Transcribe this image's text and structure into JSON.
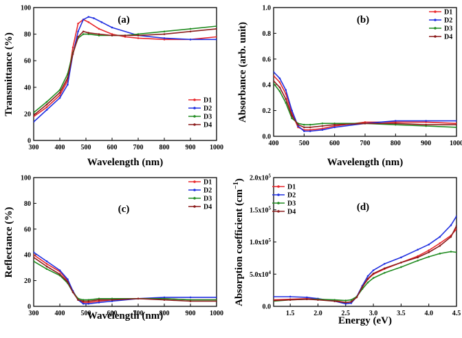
{
  "colors": {
    "D1": "#e8262b",
    "D2": "#1f2ee0",
    "D3": "#1e8a1e",
    "D4": "#8b1a1a"
  },
  "chart_data": [
    {
      "type": "line",
      "panel_label": "(a)",
      "xlabel": "Wavelength (nm)",
      "ylabel": "Transmittance (%)",
      "xlim": [
        300,
        1000
      ],
      "ylim": [
        0,
        100
      ],
      "xticks": [
        "300",
        "400",
        "500",
        "600",
        "700",
        "800",
        "900",
        "1000"
      ],
      "yticks": [
        "0",
        "20",
        "40",
        "60",
        "80",
        "100"
      ],
      "legend_position": "bottom-right",
      "series": [
        {
          "name": "D1",
          "x": [
            300,
            350,
            400,
            430,
            450,
            470,
            490,
            510,
            550,
            600,
            650,
            700,
            800,
            900,
            1000
          ],
          "y": [
            18,
            25,
            34,
            45,
            70,
            88,
            91,
            89,
            84,
            80,
            78,
            77,
            76,
            76,
            78
          ]
        },
        {
          "name": "D2",
          "x": [
            300,
            350,
            400,
            430,
            450,
            470,
            490,
            510,
            530,
            560,
            600,
            700,
            800,
            900,
            1000
          ],
          "y": [
            14,
            23,
            32,
            42,
            65,
            82,
            91,
            93,
            92,
            89,
            85,
            79,
            77,
            76,
            76
          ]
        },
        {
          "name": "D3",
          "x": [
            300,
            350,
            400,
            430,
            450,
            470,
            490,
            510,
            550,
            600,
            650,
            700,
            800,
            900,
            1000
          ],
          "y": [
            21,
            29,
            38,
            50,
            66,
            77,
            80,
            80,
            79,
            79,
            79,
            80,
            82,
            84,
            86
          ]
        },
        {
          "name": "D4",
          "x": [
            300,
            350,
            400,
            430,
            450,
            470,
            490,
            510,
            550,
            600,
            650,
            700,
            800,
            900,
            1000
          ],
          "y": [
            19,
            27,
            36,
            47,
            65,
            78,
            82,
            81,
            80,
            79,
            79,
            79,
            80,
            82,
            84
          ]
        }
      ]
    },
    {
      "type": "line",
      "panel_label": "(b)",
      "xlabel": "Wavelength (nm)",
      "ylabel": "Absorbance (arb. unit)",
      "xlim": [
        400,
        1000
      ],
      "ylim": [
        0,
        1.0
      ],
      "xticks": [
        "400",
        "500",
        "600",
        "700",
        "800",
        "900",
        "1000"
      ],
      "yticks": [
        "0.0",
        "0.2",
        "0.4",
        "0.6",
        "0.8",
        "1.0"
      ],
      "legend_position": "top-right",
      "series": [
        {
          "name": "D1",
          "x": [
            400,
            420,
            440,
            460,
            480,
            500,
            520,
            560,
            600,
            700,
            800,
            900,
            1000
          ],
          "y": [
            0.47,
            0.42,
            0.33,
            0.18,
            0.07,
            0.05,
            0.05,
            0.06,
            0.08,
            0.11,
            0.11,
            0.11,
            0.1
          ]
        },
        {
          "name": "D2",
          "x": [
            400,
            420,
            440,
            460,
            480,
            500,
            520,
            560,
            600,
            700,
            800,
            900,
            1000
          ],
          "y": [
            0.5,
            0.45,
            0.36,
            0.2,
            0.08,
            0.04,
            0.04,
            0.05,
            0.07,
            0.1,
            0.12,
            0.12,
            0.12
          ]
        },
        {
          "name": "D3",
          "x": [
            400,
            420,
            440,
            460,
            480,
            500,
            520,
            560,
            600,
            700,
            800,
            900,
            1000
          ],
          "y": [
            0.41,
            0.35,
            0.26,
            0.14,
            0.1,
            0.09,
            0.09,
            0.1,
            0.1,
            0.1,
            0.09,
            0.08,
            0.07
          ]
        },
        {
          "name": "D4",
          "x": [
            400,
            420,
            440,
            460,
            480,
            500,
            520,
            560,
            600,
            700,
            800,
            900,
            1000
          ],
          "y": [
            0.43,
            0.38,
            0.29,
            0.16,
            0.09,
            0.07,
            0.07,
            0.08,
            0.09,
            0.1,
            0.1,
            0.09,
            0.09
          ]
        }
      ]
    },
    {
      "type": "line",
      "panel_label": "(c)",
      "xlabel": "Wavelength (nm)",
      "ylabel": "Reflectance (%)",
      "xlim": [
        300,
        1000
      ],
      "ylim": [
        0,
        100
      ],
      "xticks": [
        "300",
        "400",
        "500",
        "600",
        "700",
        "800",
        "900",
        "1000"
      ],
      "yticks": [
        "0",
        "20",
        "40",
        "60",
        "80",
        "100"
      ],
      "legend_position": "top-right",
      "series": [
        {
          "name": "D1",
          "x": [
            300,
            350,
            400,
            430,
            450,
            470,
            490,
            510,
            550,
            600,
            700,
            800,
            900,
            1000
          ],
          "y": [
            40,
            33,
            27,
            20,
            12,
            5,
            3,
            3,
            4,
            5,
            6,
            6,
            5,
            5
          ]
        },
        {
          "name": "D2",
          "x": [
            300,
            350,
            400,
            430,
            450,
            470,
            490,
            510,
            550,
            600,
            700,
            800,
            900,
            1000
          ],
          "y": [
            42,
            35,
            28,
            21,
            12,
            5,
            2,
            2,
            3,
            4,
            6,
            7,
            7,
            7
          ]
        },
        {
          "name": "D3",
          "x": [
            300,
            350,
            400,
            430,
            450,
            470,
            490,
            510,
            550,
            600,
            700,
            800,
            900,
            1000
          ],
          "y": [
            35,
            29,
            24,
            18,
            11,
            6,
            5,
            5,
            6,
            6,
            6,
            6,
            5,
            5
          ]
        },
        {
          "name": "D4",
          "x": [
            300,
            350,
            400,
            430,
            450,
            470,
            490,
            510,
            550,
            600,
            700,
            800,
            900,
            1000
          ],
          "y": [
            38,
            31,
            25,
            19,
            11,
            5,
            4,
            4,
            5,
            5,
            6,
            5,
            4,
            4
          ]
        }
      ]
    },
    {
      "type": "line",
      "panel_label": "(d)",
      "xlabel": "Energy (eV)",
      "ylabel": "Absorption coefficient (cm",
      "ylabel_sup": "−1",
      "ylabel_end": ")",
      "xlim": [
        1.2,
        4.5
      ],
      "ylim": [
        0,
        200000
      ],
      "xticks": [
        "1.5",
        "2.0",
        "2.5",
        "3.0",
        "3.5",
        "4.0",
        "4.5"
      ],
      "xtick_values": [
        1.5,
        2.0,
        2.5,
        3.0,
        3.5,
        4.0,
        4.5
      ],
      "yticks": [
        {
          "base": "0.0",
          "sup": ""
        },
        {
          "base": "5.0x10",
          "sup": "4"
        },
        {
          "base": "1.0x10",
          "sup": "5"
        },
        {
          "base": "1.5x10",
          "sup": "5"
        },
        {
          "base": "2.0x10",
          "sup": "5"
        }
      ],
      "ytick_values": [
        0,
        50000,
        100000,
        150000,
        200000
      ],
      "legend_position": "top-left",
      "series": [
        {
          "name": "D1",
          "x": [
            1.2,
            1.5,
            1.8,
            2.0,
            2.3,
            2.5,
            2.6,
            2.7,
            2.8,
            2.9,
            3.0,
            3.2,
            3.5,
            3.8,
            4.0,
            4.2,
            4.4,
            4.5
          ],
          "y": [
            10000,
            11000,
            12000,
            11000,
            9000,
            6000,
            7000,
            15000,
            30000,
            42000,
            50000,
            58000,
            68000,
            78000,
            87000,
            98000,
            110000,
            120000
          ]
        },
        {
          "name": "D2",
          "x": [
            1.2,
            1.5,
            1.8,
            2.0,
            2.3,
            2.5,
            2.6,
            2.7,
            2.8,
            2.9,
            3.0,
            3.2,
            3.5,
            3.8,
            4.0,
            4.2,
            4.4,
            4.5
          ],
          "y": [
            15000,
            15000,
            14000,
            12000,
            8000,
            4000,
            5000,
            15000,
            32000,
            47000,
            56000,
            66000,
            76000,
            88000,
            96000,
            108000,
            126000,
            140000
          ]
        },
        {
          "name": "D3",
          "x": [
            1.2,
            1.5,
            1.8,
            2.0,
            2.3,
            2.5,
            2.6,
            2.7,
            2.8,
            2.9,
            3.0,
            3.2,
            3.5,
            3.8,
            4.0,
            4.2,
            4.4,
            4.5
          ],
          "y": [
            8000,
            10000,
            11000,
            11000,
            10000,
            9000,
            10000,
            15000,
            27000,
            37000,
            44000,
            52000,
            61000,
            71000,
            77000,
            82000,
            85000,
            84000
          ]
        },
        {
          "name": "D4",
          "x": [
            1.2,
            1.5,
            1.8,
            2.0,
            2.3,
            2.5,
            2.6,
            2.7,
            2.8,
            2.9,
            3.0,
            3.2,
            3.5,
            3.8,
            4.0,
            4.2,
            4.4,
            4.5
          ],
          "y": [
            9000,
            10000,
            11000,
            10000,
            8000,
            6000,
            7000,
            14000,
            30000,
            43000,
            51000,
            59000,
            68000,
            76000,
            84000,
            94000,
            108000,
            125000
          ]
        }
      ]
    }
  ]
}
